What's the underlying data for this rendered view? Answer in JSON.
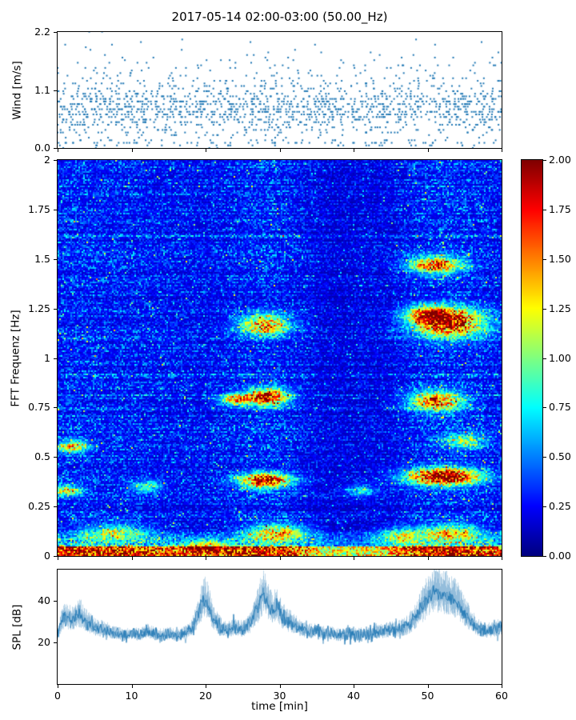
{
  "title": "2017-05-14 02:00-03:00 (50.00_Hz)",
  "xlabel": "time [min]",
  "x_ticks": [
    0,
    10,
    20,
    30,
    40,
    50,
    60
  ],
  "x_range": [
    0,
    60
  ],
  "chart_data": [
    {
      "type": "scatter",
      "name": "wind",
      "ylabel": "Wind [m/s]",
      "ylim": [
        0,
        2.2
      ],
      "yticks": [
        0.0,
        1.1,
        2.2
      ],
      "ytick_labels": [
        "0.0",
        "1.1",
        "2.2"
      ],
      "marker_color": "#1f77b4",
      "gen": {
        "seed": 11,
        "n_points": 1700,
        "quant_step": 0.049,
        "main_mean": 0.72,
        "main_sd": 0.26,
        "tail_mean": 1.3,
        "tail_sd": 0.35,
        "tail_frac": 0.15,
        "low_frac": 0.05
      }
    },
    {
      "type": "heatmap",
      "name": "spectrogram",
      "ylabel": "FFT Frequenz [Hz]",
      "ylim": [
        0,
        2
      ],
      "yticks": [
        0,
        0.25,
        0.5,
        0.75,
        1,
        1.25,
        1.5,
        1.75,
        2
      ],
      "ytick_labels": [
        "0",
        "0.25",
        "0.5",
        "0.75",
        "1",
        "1.25",
        "1.5",
        "1.75",
        "2"
      ],
      "colormap": "jet",
      "clim": [
        0,
        2
      ],
      "colorbar_tick_values": [
        0,
        0.25,
        0.5,
        0.75,
        1,
        1.25,
        1.5,
        1.75,
        2
      ],
      "colorbar_tick_labels": [
        "0.00",
        "0.25",
        "0.50",
        "0.75",
        "1.00",
        "1.25",
        "1.50",
        "1.75",
        "2.00"
      ],
      "gen": {
        "seed": 99,
        "cols": 278,
        "rows": 248,
        "base_min": 0.16,
        "base_var": 0.38,
        "hot_bottom_f": 0.045,
        "warm_band_f": 0.13,
        "speckle_prob": 0.02,
        "hotspots": [
          [
            28,
            0.38,
            2.5,
            0.025,
            1.5
          ],
          [
            28.5,
            0.8,
            2,
            0.03,
            1.4
          ],
          [
            28,
            1.17,
            2.5,
            0.035,
            1.1
          ],
          [
            24,
            0.79,
            1.5,
            0.02,
            1.2
          ],
          [
            52,
            0.4,
            3.5,
            0.03,
            1.7
          ],
          [
            51,
            0.78,
            2.5,
            0.035,
            1.2
          ],
          [
            53,
            1.18,
            3.5,
            0.05,
            1.4
          ],
          [
            51,
            1.47,
            2.5,
            0.03,
            1.2
          ],
          [
            2,
            0.55,
            1.5,
            0.02,
            0.9
          ],
          [
            1,
            0.33,
            1.5,
            0.02,
            0.8
          ],
          [
            12,
            0.35,
            1.5,
            0.02,
            0.6
          ],
          [
            46,
            0.1,
            2,
            0.03,
            0.8
          ],
          [
            8,
            0.12,
            3,
            0.03,
            0.7
          ],
          [
            30,
            0.12,
            3,
            0.03,
            0.9
          ],
          [
            53,
            0.12,
            3,
            0.03,
            0.8
          ],
          [
            20,
            0.05,
            2,
            0.02,
            0.8
          ],
          [
            41,
            0.33,
            1.5,
            0.02,
            0.7
          ],
          [
            55,
            0.58,
            2,
            0.025,
            0.7
          ],
          [
            50,
            1.22,
            2,
            0.03,
            1.0
          ]
        ],
        "column_boosts": [
          [
            28,
            3,
            0.25
          ],
          [
            53,
            4,
            0.25
          ],
          [
            8,
            5,
            0.12
          ],
          [
            38,
            3,
            -0.22
          ],
          [
            44,
            2,
            -0.15
          ],
          [
            2,
            2,
            0.15
          ]
        ]
      }
    },
    {
      "type": "line",
      "name": "spl",
      "ylabel": "SPL [dB]",
      "ylim": [
        0,
        55
      ],
      "yticks": [
        20,
        40
      ],
      "ytick_labels": [
        "20",
        "40"
      ],
      "line_color": "#1f77b4",
      "noise_sd": 1.8,
      "envelope_dB": [
        [
          0,
          24
        ],
        [
          0.5,
          30
        ],
        [
          1,
          32
        ],
        [
          2,
          31
        ],
        [
          3,
          33
        ],
        [
          4,
          29
        ],
        [
          5,
          27
        ],
        [
          6,
          26
        ],
        [
          7,
          25
        ],
        [
          8,
          24
        ],
        [
          9,
          23
        ],
        [
          10,
          24
        ],
        [
          11,
          23
        ],
        [
          12,
          25
        ],
        [
          13,
          24
        ],
        [
          14,
          23
        ],
        [
          15,
          24
        ],
        [
          16,
          23
        ],
        [
          17,
          24
        ],
        [
          18,
          26
        ],
        [
          19,
          33
        ],
        [
          19.7,
          41
        ],
        [
          20.3,
          38
        ],
        [
          21,
          31
        ],
        [
          22,
          27
        ],
        [
          23,
          26
        ],
        [
          24,
          27
        ],
        [
          25,
          26
        ],
        [
          26,
          29
        ],
        [
          27,
          36
        ],
        [
          27.7,
          43
        ],
        [
          28.3,
          40
        ],
        [
          29,
          35
        ],
        [
          29.7,
          37
        ],
        [
          30.3,
          32
        ],
        [
          31,
          30
        ],
        [
          32,
          28
        ],
        [
          33,
          26
        ],
        [
          34,
          25
        ],
        [
          35,
          25
        ],
        [
          36,
          24
        ],
        [
          37,
          24
        ],
        [
          38,
          23
        ],
        [
          39,
          24
        ],
        [
          40,
          23
        ],
        [
          41,
          24
        ],
        [
          42,
          24
        ],
        [
          43,
          25
        ],
        [
          44,
          25
        ],
        [
          45,
          26
        ],
        [
          46,
          26
        ],
        [
          47,
          27
        ],
        [
          48,
          30
        ],
        [
          49,
          35
        ],
        [
          50,
          41
        ],
        [
          51,
          44
        ],
        [
          52,
          43
        ],
        [
          53,
          42
        ],
        [
          54,
          39
        ],
        [
          55,
          34
        ],
        [
          56,
          29
        ],
        [
          57,
          26
        ],
        [
          58,
          25
        ],
        [
          59,
          26
        ],
        [
          60,
          27
        ]
      ]
    }
  ]
}
